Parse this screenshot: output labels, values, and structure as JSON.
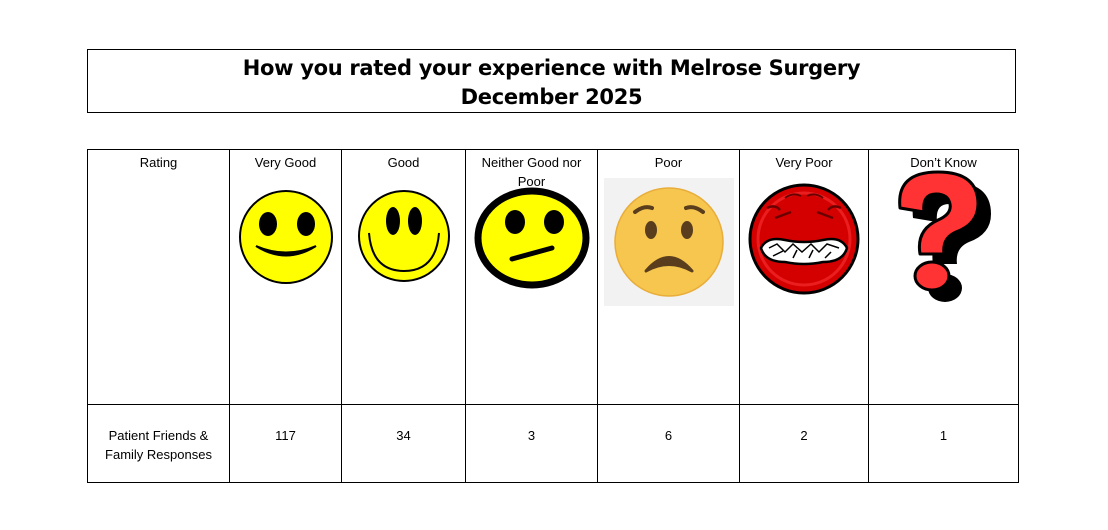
{
  "title": {
    "line1": "How you rated your experience with Melrose Surgery",
    "line2": "December 2025"
  },
  "table": {
    "row_header_rating": "Rating",
    "row_header_responses": "Patient Friends & Family Responses",
    "columns": [
      {
        "label": "Very Good",
        "icon": "very-good-smiley-icon",
        "count": "117"
      },
      {
        "label": "Good",
        "icon": "good-smiley-icon",
        "count": "34"
      },
      {
        "label": "Neither Good nor Poor",
        "icon": "neutral-face-icon",
        "count": "3"
      },
      {
        "label": "Poor",
        "icon": "worried-face-icon",
        "count": "6"
      },
      {
        "label": "Very Poor",
        "icon": "angry-face-icon",
        "count": "2"
      },
      {
        "label": "Don’t Know",
        "icon": "question-mark-icon",
        "count": "1"
      }
    ]
  },
  "colors": {
    "smiley_yellow": "#ffff00",
    "worried_yellow": "#f7c64e",
    "angry_red": "#d40000",
    "question_red": "#ff3333"
  }
}
